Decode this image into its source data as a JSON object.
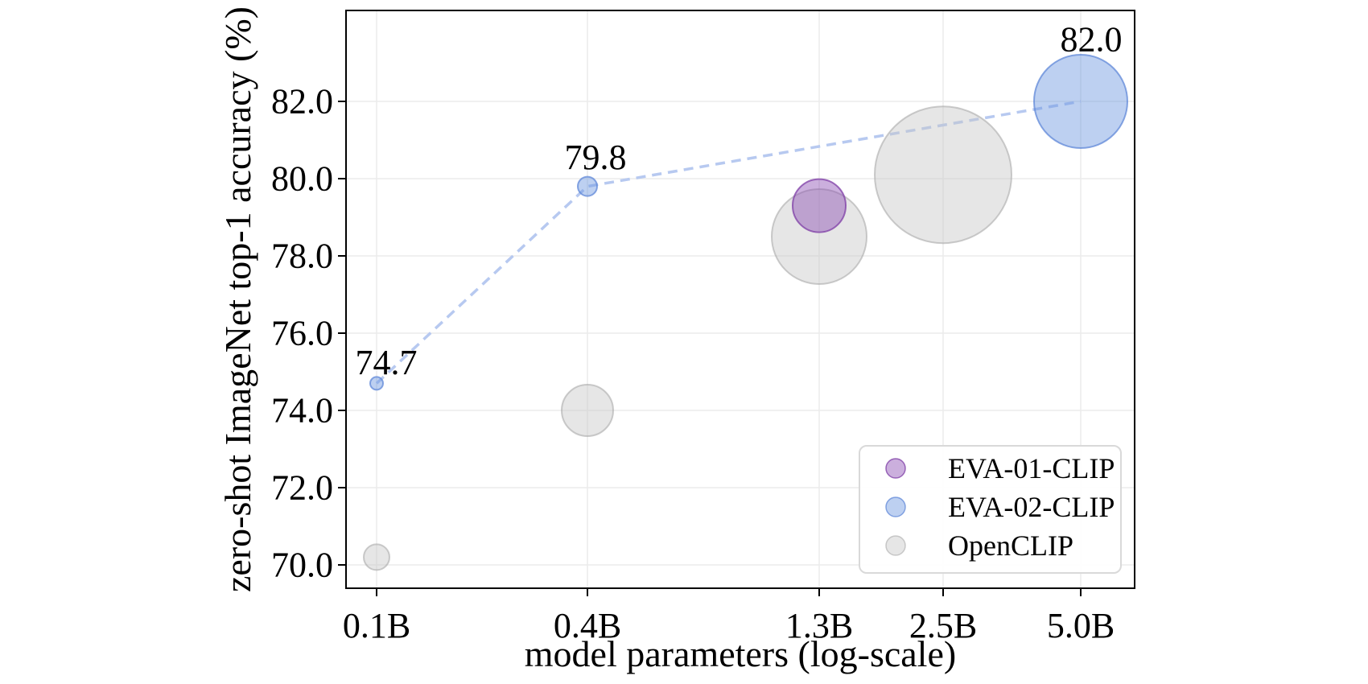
{
  "figure": {
    "background": "#ffffff"
  },
  "chart_data": {
    "type": "scatter",
    "title": "",
    "xlabel": "model parameters (log-scale)",
    "ylabel": "zero-shot ImageNet top-1 accuracy (%)",
    "x_scale": "log",
    "grid": true,
    "x_ticks": [
      {
        "value": 0.1,
        "label": "0.1B"
      },
      {
        "value": 0.4,
        "label": "0.4B"
      },
      {
        "value": 1.3,
        "label": "1.3B"
      },
      {
        "value": 2.5,
        "label": "2.5B"
      },
      {
        "value": 5.0,
        "label": "5.0B"
      }
    ],
    "y_ticks": [
      {
        "value": 70.0,
        "label": "70.0"
      },
      {
        "value": 72.0,
        "label": "72.0"
      },
      {
        "value": 74.0,
        "label": "74.0"
      },
      {
        "value": 76.0,
        "label": "76.0"
      },
      {
        "value": 78.0,
        "label": "78.0"
      },
      {
        "value": 80.0,
        "label": "80.0"
      },
      {
        "value": 82.0,
        "label": "82.0"
      }
    ],
    "ylim": [
      69.4,
      84.4
    ],
    "legend_position": "lower right",
    "colors": {
      "grid": "#ececec",
      "axis": "#000000",
      "text": "#000000",
      "legend_border": "#d9d9d9",
      "legend_background": "#ffffff",
      "eva02_line": "#b7c9f0"
    },
    "series": [
      {
        "name": "EVA-01-CLIP",
        "fill": "rgba(140,77,180,0.45)",
        "stroke": "rgba(125,60,165,0.75)",
        "line": "none",
        "points": [
          {
            "x": 1.3,
            "y": 79.3,
            "r": 33
          }
        ]
      },
      {
        "name": "EVA-02-CLIP",
        "fill": "rgba(108,150,224,0.45)",
        "stroke": "rgba(96,136,216,0.75)",
        "line": "dashed",
        "points": [
          {
            "x": 0.1,
            "y": 74.7,
            "r": 8,
            "label": "74.7",
            "label_dx": 12,
            "label_dy": -26
          },
          {
            "x": 0.4,
            "y": 79.8,
            "r": 12,
            "label": "79.8",
            "label_dx": 10,
            "label_dy": -36
          },
          {
            "x": 5.0,
            "y": 82.0,
            "r": 58,
            "label": "82.0",
            "label_dx": 13,
            "label_dy": -77
          }
        ]
      },
      {
        "name": "OpenCLIP",
        "fill": "rgba(199,199,199,0.45)",
        "stroke": "rgba(170,170,170,0.60)",
        "line": "none",
        "points": [
          {
            "x": 0.1,
            "y": 70.2,
            "r": 16
          },
          {
            "x": 0.4,
            "y": 74.0,
            "r": 32
          },
          {
            "x": 1.3,
            "y": 78.5,
            "r": 59
          },
          {
            "x": 2.5,
            "y": 80.1,
            "r": 85
          }
        ]
      }
    ]
  }
}
